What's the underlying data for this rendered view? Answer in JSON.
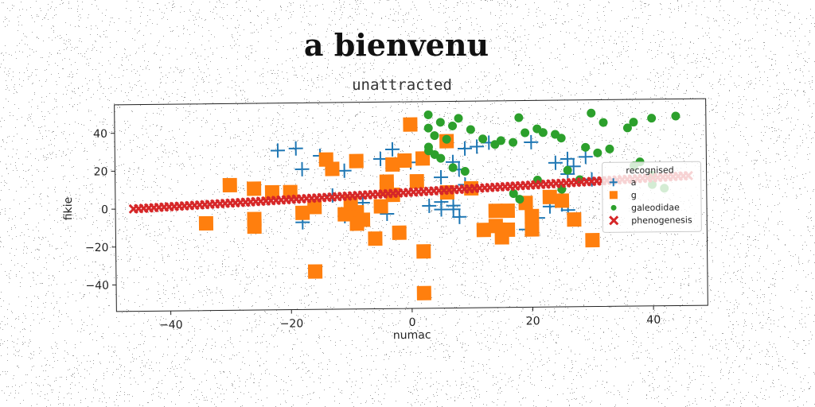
{
  "chart_data": {
    "type": "scatter",
    "title": "a bienvenu",
    "subtitle": "unattracted",
    "xlabel": "numac",
    "ylabel": "fikie",
    "xlim": [
      -49,
      49
    ],
    "ylim": [
      -54,
      55
    ],
    "xticks": [
      -40,
      -20,
      0,
      20,
      40
    ],
    "yticks": [
      -40,
      -20,
      0,
      20,
      40
    ],
    "grid": false,
    "legend": {
      "title": "recognised",
      "position": "right"
    },
    "series": [
      {
        "name": "a",
        "marker": "plus",
        "color": "#1f77b4",
        "points": [
          [
            -22,
            30
          ],
          [
            -19,
            31
          ],
          [
            -18,
            20
          ],
          [
            -15,
            27
          ],
          [
            -11,
            19
          ],
          [
            -5,
            25
          ],
          [
            -3,
            30
          ],
          [
            -2,
            22
          ],
          [
            0,
            23
          ],
          [
            -18,
            -8
          ],
          [
            -11,
            -5
          ],
          [
            -4,
            -4
          ],
          [
            -8,
            2
          ],
          [
            -13,
            6
          ],
          [
            3,
            0
          ],
          [
            5,
            2
          ],
          [
            7,
            0
          ],
          [
            5,
            15
          ],
          [
            9,
            30
          ],
          [
            11,
            31
          ],
          [
            13,
            33
          ],
          [
            7,
            23
          ],
          [
            8,
            19
          ],
          [
            9,
            11
          ],
          [
            20,
            33
          ],
          [
            24,
            22
          ],
          [
            26,
            24
          ],
          [
            27,
            20
          ],
          [
            29,
            25
          ],
          [
            26,
            16
          ],
          [
            30,
            13
          ],
          [
            25,
            0
          ],
          [
            23,
            -1
          ],
          [
            26,
            -3
          ],
          [
            21,
            -7
          ],
          [
            19,
            -13
          ],
          [
            8,
            -6
          ],
          [
            7,
            -2
          ],
          [
            5,
            -2
          ]
        ]
      },
      {
        "name": "g",
        "marker": "square",
        "color": "#ff7f0e",
        "points": [
          [
            0,
            43
          ],
          [
            6,
            34
          ],
          [
            -14,
            25
          ],
          [
            -13,
            20
          ],
          [
            -9,
            24
          ],
          [
            -3,
            22
          ],
          [
            -1,
            24
          ],
          [
            2,
            25
          ],
          [
            -30,
            12
          ],
          [
            -26,
            10
          ],
          [
            -23,
            8
          ],
          [
            -20,
            8
          ],
          [
            -4,
            13
          ],
          [
            -4,
            9
          ],
          [
            1,
            13
          ],
          [
            -34,
            -8
          ],
          [
            -26,
            -6
          ],
          [
            -26,
            -10
          ],
          [
            -18,
            -3
          ],
          [
            -16,
            0
          ],
          [
            -11,
            -4
          ],
          [
            -9,
            -3
          ],
          [
            -8,
            -7
          ],
          [
            -9,
            -9
          ],
          [
            -5,
            0
          ],
          [
            -6,
            -17
          ],
          [
            -2,
            -14
          ],
          [
            -16,
            -34
          ],
          [
            2,
            -24
          ],
          [
            2,
            -46
          ],
          [
            12,
            -13
          ],
          [
            14,
            -11
          ],
          [
            15,
            -17
          ],
          [
            16,
            -13
          ],
          [
            14,
            -3
          ],
          [
            16,
            -3
          ],
          [
            19,
            1
          ],
          [
            20,
            -6
          ],
          [
            23,
            4
          ],
          [
            20,
            -13
          ],
          [
            27,
            -8
          ],
          [
            30,
            -19
          ],
          [
            25,
            2
          ],
          [
            -10,
            2
          ],
          [
            -3,
            6
          ],
          [
            6,
            7
          ],
          [
            10,
            9
          ]
        ]
      },
      {
        "name": "galeodidae",
        "marker": "circle",
        "color": "#2ca02c",
        "points": [
          [
            3,
            48
          ],
          [
            5,
            44
          ],
          [
            7,
            42
          ],
          [
            8,
            46
          ],
          [
            3,
            41
          ],
          [
            4,
            37
          ],
          [
            6,
            35
          ],
          [
            10,
            40
          ],
          [
            3,
            31
          ],
          [
            4,
            27
          ],
          [
            5,
            25
          ],
          [
            3,
            29
          ],
          [
            9,
            18
          ],
          [
            7,
            20
          ],
          [
            12,
            35
          ],
          [
            14,
            32
          ],
          [
            15,
            34
          ],
          [
            17,
            33
          ],
          [
            18,
            46
          ],
          [
            19,
            38
          ],
          [
            21,
            40
          ],
          [
            22,
            38
          ],
          [
            24,
            37
          ],
          [
            25,
            35
          ],
          [
            29,
            30
          ],
          [
            30,
            48
          ],
          [
            32,
            43
          ],
          [
            33,
            29
          ],
          [
            36,
            40
          ],
          [
            37,
            43
          ],
          [
            40,
            45
          ],
          [
            44,
            46
          ],
          [
            31,
            27
          ],
          [
            38,
            22
          ],
          [
            37,
            20
          ],
          [
            40,
            15
          ],
          [
            40,
            10
          ],
          [
            42,
            8
          ],
          [
            28,
            13
          ],
          [
            26,
            18
          ],
          [
            21,
            13
          ],
          [
            17,
            6
          ],
          [
            18,
            3
          ],
          [
            25,
            8
          ]
        ]
      },
      {
        "name": "phenogenesis",
        "marker": "x",
        "color": "#d62728",
        "line": {
          "x_start": -46,
          "x_end": 46,
          "y_start": 0,
          "y_end": 14.5,
          "count": 110
        }
      }
    ]
  }
}
